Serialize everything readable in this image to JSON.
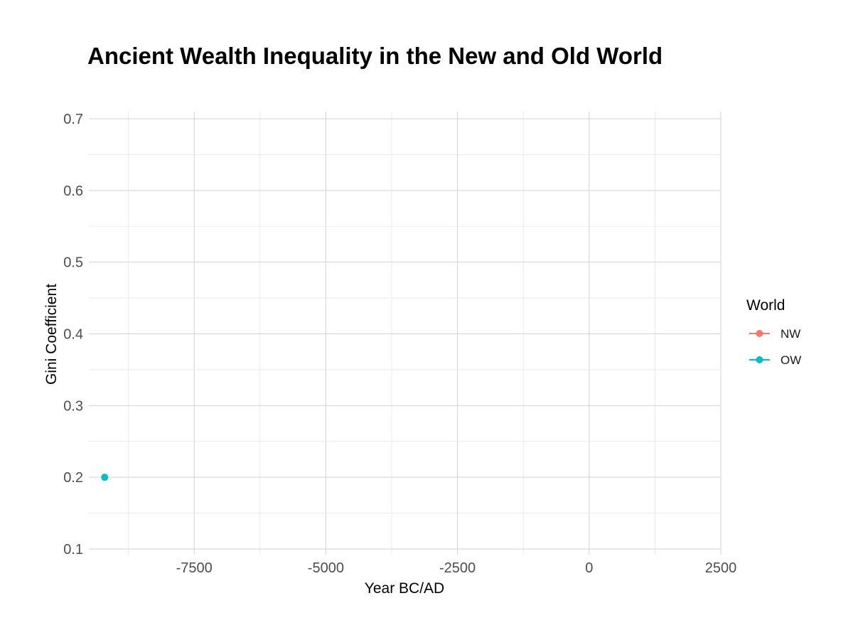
{
  "chart_data": {
    "type": "scatter",
    "title": "Ancient Wealth Inequality in the New and Old World",
    "xlabel": "Year BC/AD",
    "ylabel": "Gini Coefficient",
    "xlim": [
      -9500,
      2500
    ],
    "ylim": [
      0.1,
      0.7
    ],
    "x_ticks": [
      -7500,
      -5000,
      -2500,
      0,
      2500
    ],
    "x_tick_labels": [
      "-7500",
      "-5000",
      "-2500",
      "0",
      "2500"
    ],
    "y_ticks": [
      0.1,
      0.2,
      0.3,
      0.4,
      0.5,
      0.6,
      0.7
    ],
    "y_tick_labels": [
      "0.1",
      "0.2",
      "0.3",
      "0.4",
      "0.5",
      "0.6",
      "0.7"
    ],
    "grid": true,
    "legend": {
      "title": "World",
      "position": "right"
    },
    "series": [
      {
        "name": "NW",
        "color": "#F8766D",
        "points": []
      },
      {
        "name": "OW",
        "color": "#00BFC4",
        "points": [
          {
            "x": -9200,
            "y": 0.2
          }
        ]
      }
    ]
  }
}
